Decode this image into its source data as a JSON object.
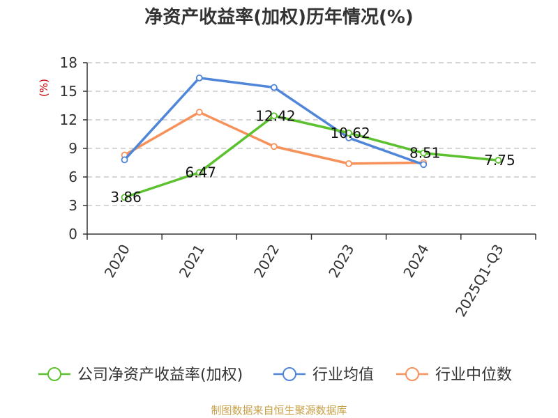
{
  "chart_data": {
    "type": "line",
    "title": "净资产收益率(加权)历年情况(%)",
    "ylabel": "(%)",
    "xlabel": "",
    "categories": [
      "2020",
      "2021",
      "2022",
      "2023",
      "2024",
      "2025Q1-Q3"
    ],
    "ylim": [
      0,
      18
    ],
    "yticks": [
      0,
      3,
      6,
      9,
      12,
      15,
      18
    ],
    "grid": true,
    "legend": "bottom",
    "series": [
      {
        "name": "公司净资产收益率(加权)",
        "color": "#5cc12e",
        "values": [
          3.86,
          6.47,
          12.42,
          10.62,
          8.51,
          7.75
        ],
        "labels": [
          "3.86",
          "6.47",
          "12.42",
          "10.62",
          "8.51",
          "7.75"
        ]
      },
      {
        "name": "行业均值",
        "color": "#4f86d9",
        "values": [
          7.8,
          16.4,
          15.4,
          10.1,
          7.3,
          null
        ]
      },
      {
        "name": "行业中位数",
        "color": "#f7915a",
        "values": [
          8.3,
          12.8,
          9.2,
          7.4,
          7.5,
          null
        ]
      }
    ]
  },
  "source": "制图数据来自恒生聚源数据库"
}
